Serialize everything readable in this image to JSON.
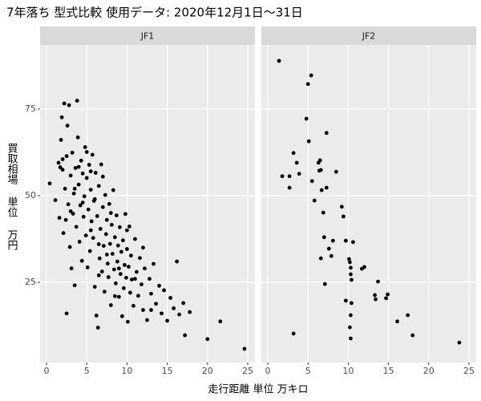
{
  "title": "7年落ち 型式比較 使用データ: 2020年12月1日～31日",
  "x_label": "走行距離 単位 万キロ",
  "y_label": "買取相場 単位 万円",
  "chart_data": [
    {
      "type": "scatter",
      "title": "JF1",
      "color": "#000000",
      "grid": true,
      "xlim": [
        -0.8,
        25.9
      ],
      "ylim": [
        1.85,
        93.5
      ],
      "xticks": [
        0,
        5,
        10,
        15,
        20,
        25
      ],
      "yticks": [
        25,
        50,
        75
      ],
      "x": [
        0.4,
        1.1,
        1.5,
        1.6,
        1.7,
        1.8,
        1.9,
        2.0,
        2.1,
        2.2,
        2.3,
        2.4,
        2.5,
        2.5,
        2.6,
        2.7,
        2.8,
        2.9,
        3.0,
        3.1,
        3.2,
        3.3,
        3.4,
        3.5,
        3.6,
        3.7,
        3.8,
        3.9,
        4.0,
        4.1,
        4.2,
        4.3,
        4.4,
        4.5,
        4.6,
        4.7,
        4.8,
        4.9,
        5.0,
        5.1,
        5.2,
        5.3,
        5.4,
        5.5,
        5.6,
        5.7,
        5.8,
        5.9,
        6.0,
        6.1,
        6.2,
        6.3,
        6.4,
        6.5,
        6.6,
        6.7,
        6.8,
        6.9,
        7.0,
        7.1,
        7.2,
        7.3,
        7.4,
        7.5,
        7.6,
        7.7,
        7.8,
        7.9,
        8.0,
        8.1,
        8.2,
        8.3,
        8.4,
        8.5,
        8.6,
        8.7,
        8.8,
        8.9,
        9.0,
        9.1,
        9.2,
        9.3,
        9.4,
        9.5,
        9.6,
        9.7,
        9.8,
        9.9,
        10.0,
        10.1,
        10.2,
        10.3,
        10.4,
        10.5,
        10.6,
        10.8,
        11.0,
        11.2,
        11.4,
        11.6,
        11.8,
        12.0,
        12.2,
        12.5,
        12.8,
        13.0,
        13.3,
        13.6,
        14.0,
        14.3,
        14.6,
        15.0,
        15.4,
        15.8,
        16.2,
        16.5,
        17.0,
        17.2,
        17.8,
        20.0,
        21.6,
        24.6,
        3.0,
        4.0,
        5.0,
        5.5,
        6.0,
        6.5,
        7.0,
        7.5,
        8.0,
        9.0,
        10.0,
        11.0,
        12.0,
        13.0,
        4.5,
        5.5,
        6.5,
        2.0,
        3.5,
        8.5
      ],
      "values": [
        53.5,
        48.7,
        59.5,
        43.6,
        58.2,
        66.1,
        72.6,
        57.5,
        39.2,
        76.6,
        52.0,
        43.0,
        16.0,
        61.4,
        70.2,
        47.5,
        76.1,
        35.2,
        55.8,
        29.0,
        62.4,
        44.8,
        50.6,
        24.1,
        58.0,
        41.0,
        77.4,
        66.8,
        53.2,
        36.7,
        47.2,
        60.1,
        31.2,
        56.4,
        43.9,
        49.8,
        64.0,
        38.5,
        55.1,
        29.3,
        46.0,
        58.9,
        34.0,
        51.7,
        42.6,
        61.8,
        37.8,
        48.5,
        23.7,
        56.6,
        15.4,
        44.1,
        11.9,
        52.8,
        31.9,
        40.4,
        59.0,
        28.1,
        46.7,
        35.5,
        22.3,
        50.2,
        38.9,
        43.0,
        30.4,
        26.5,
        47.6,
        36.1,
        18.4,
        41.6,
        33.2,
        51.6,
        28.7,
        38.0,
        24.7,
        44.3,
        31.0,
        35.6,
        20.8,
        40.9,
        27.4,
        33.8,
        15.2,
        37.1,
        23.3,
        30.0,
        44.7,
        26.3,
        34.6,
        13.6,
        29.5,
        41.1,
        22.0,
        32.7,
        25.8,
        18.2,
        37.5,
        28.0,
        21.1,
        32.0,
        24.4,
        17.0,
        29.0,
        14.1,
        26.0,
        21.7,
        30.3,
        18.8,
        24.0,
        16.0,
        22.7,
        13.9,
        20.5,
        17.5,
        31.0,
        15.7,
        19.0,
        9.7,
        16.4,
        8.6,
        13.7,
        5.8,
        45.5,
        58.3,
        62.6,
        40.0,
        49.0,
        27.0,
        55.5,
        33.0,
        45.0,
        29.0,
        40.0,
        26.0,
        35.0,
        17.0,
        48.0,
        57.0,
        36.0,
        60.5,
        52.0,
        21.0
      ]
    },
    {
      "type": "scatter",
      "title": "JF2",
      "color": "#000000",
      "grid": true,
      "xlim": [
        -0.8,
        25.9
      ],
      "ylim": [
        1.85,
        93.5
      ],
      "xticks": [
        0,
        5,
        10,
        15,
        20,
        25
      ],
      "yticks": [
        25,
        50,
        75
      ],
      "x": [
        1.4,
        5.4,
        5.0,
        4.8,
        7.3,
        5.1,
        1.8,
        2.7,
        3.2,
        3.6,
        3.9,
        2.7,
        5.5,
        5.8,
        6.3,
        6.5,
        6.6,
        6.4,
        6.7,
        7.3,
        8.5,
        9.2,
        9.4,
        6.9,
        7.0,
        7.6,
        7.9,
        6.6,
        7.1,
        8.1,
        9.7,
        10.6,
        10.1,
        10.2,
        10.3,
        10.3,
        10.4,
        11.7,
        12.0,
        13.7,
        13.3,
        14.7,
        14.9,
        13.4,
        9.7,
        10.4,
        10.3,
        10.2,
        10.3,
        16.1,
        17.4,
        18.0,
        3.2,
        23.8
      ],
      "values": [
        88.9,
        84.7,
        82.2,
        72.2,
        68.1,
        65.7,
        55.6,
        55.6,
        62.3,
        59.5,
        56.3,
        52.3,
        54.2,
        48.6,
        59.5,
        60.2,
        57.4,
        57.2,
        51.6,
        52.3,
        56.9,
        46.8,
        44.0,
        45.1,
        38.0,
        34.7,
        32.6,
        31.9,
        24.5,
        37.0,
        37.0,
        36.6,
        31.7,
        30.8,
        29.2,
        27.3,
        25.7,
        28.9,
        29.4,
        25.2,
        21.3,
        20.4,
        21.5,
        20.1,
        19.7,
        19.0,
        15.5,
        12.0,
        8.8,
        13.7,
        15.5,
        9.7,
        10.2,
        7.6
      ]
    }
  ]
}
